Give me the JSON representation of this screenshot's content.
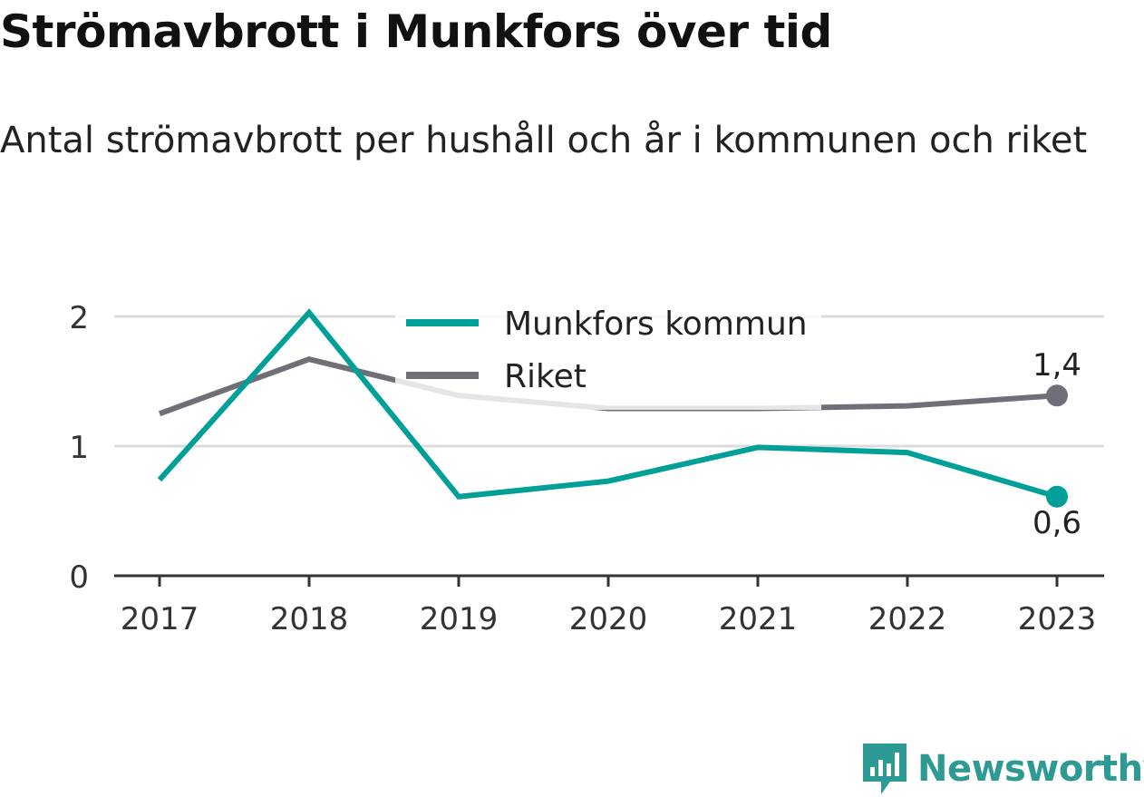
{
  "title": "Strömavbrott i Munkfors över tid",
  "subtitle": "Antal strömavbrott per hushåll och år i kommunen och riket",
  "brand": {
    "name": "Newsworthy",
    "icon": "newsworthy-logo-icon",
    "color": "#2e9a94"
  },
  "chart_data": {
    "type": "line",
    "x": [
      "2017",
      "2018",
      "2019",
      "2020",
      "2021",
      "2022",
      "2023"
    ],
    "ylim": [
      0,
      2
    ],
    "yticks": [
      "0",
      "1",
      "2"
    ],
    "grid": true,
    "legend": "top-center",
    "series": [
      {
        "name": "Munkfors kommun",
        "color": "#00a098",
        "values": [
          0.74,
          2.03,
          0.61,
          0.73,
          0.99,
          0.95,
          0.61
        ],
        "end_label": "0,6"
      },
      {
        "name": "Riket",
        "color": "#6f6f78",
        "values": [
          1.25,
          1.67,
          1.39,
          1.29,
          1.29,
          1.31,
          1.39
        ],
        "end_label": "1,4"
      }
    ]
  }
}
